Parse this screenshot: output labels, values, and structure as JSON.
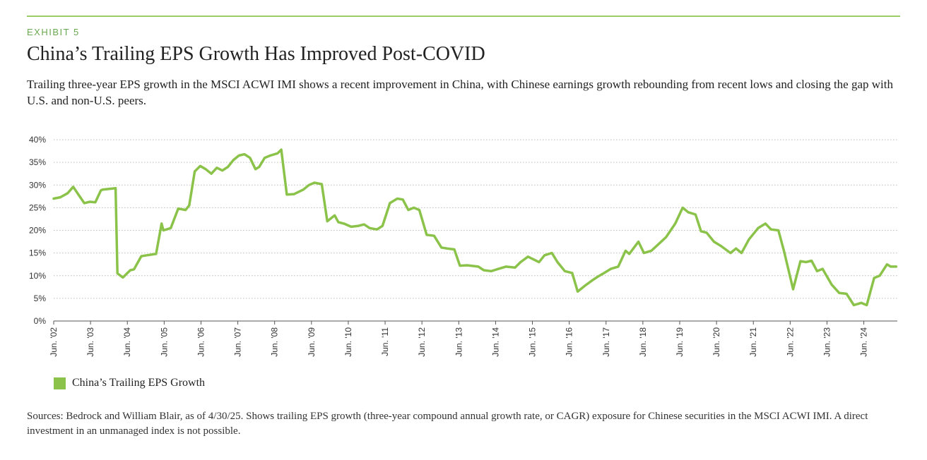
{
  "exhibit": "EXHIBIT 5",
  "title": "China’s Trailing EPS Growth Has Improved Post-COVID",
  "subtitle": "Trailing three-year EPS growth in the MSCI ACWI IMI shows a recent improvement in China, with Chinese earnings growth rebounding from recent lows and closing the gap with U.S. and non-U.S. peers.",
  "sources": "Sources: Bedrock and William Blair, as of 4/30/25. Shows trailing EPS growth (three-year compound annual growth rate, or CAGR) exposure for Chinese securities in the MSCI ACWI IMI. A direct investment in an unmanaged index is not possible.",
  "colors": {
    "accent": "#6aa84f",
    "line": "#8bc34a",
    "rule": "#9ccc65",
    "grid": "#bdbdbd"
  },
  "chart_data": {
    "type": "line",
    "title": "China’s Trailing EPS Growth Has Improved Post-COVID",
    "xlabel": "",
    "ylabel": "",
    "xlim": [
      2002.42,
      2025.33
    ],
    "ylim": [
      0,
      40
    ],
    "grid": true,
    "legend_position": "bottom-left",
    "y_ticks": [
      "0%",
      "5%",
      "10%",
      "15%",
      "20%",
      "25%",
      "30%",
      "35%",
      "40%"
    ],
    "x_ticks": [
      {
        "x": 2002.42,
        "label": "Jun. '02"
      },
      {
        "x": 2003.42,
        "label": "Jun. '03"
      },
      {
        "x": 2004.42,
        "label": "Jun. '04"
      },
      {
        "x": 2005.42,
        "label": "Jun. '05"
      },
      {
        "x": 2006.42,
        "label": "Jun. '06"
      },
      {
        "x": 2007.42,
        "label": "Jun. '07"
      },
      {
        "x": 2008.42,
        "label": "Jun. '08"
      },
      {
        "x": 2009.42,
        "label": "Jun. '09"
      },
      {
        "x": 2010.42,
        "label": "Jun. '10"
      },
      {
        "x": 2011.42,
        "label": "Jun. '11"
      },
      {
        "x": 2012.42,
        "label": "Jun. '12"
      },
      {
        "x": 2013.42,
        "label": "Jun. '13"
      },
      {
        "x": 2014.42,
        "label": "Jun. '14"
      },
      {
        "x": 2015.42,
        "label": "Jun. '15"
      },
      {
        "x": 2016.42,
        "label": "Jun. '16"
      },
      {
        "x": 2017.42,
        "label": "Jun. '17"
      },
      {
        "x": 2018.42,
        "label": "Jun. '18"
      },
      {
        "x": 2019.42,
        "label": "Jun. '19"
      },
      {
        "x": 2020.42,
        "label": "Jun. '20"
      },
      {
        "x": 2021.42,
        "label": "Jun. '21"
      },
      {
        "x": 2022.42,
        "label": "Jun. '22"
      },
      {
        "x": 2023.42,
        "label": "Jun. '23"
      },
      {
        "x": 2024.42,
        "label": "Jun. '24"
      }
    ],
    "series": [
      {
        "name": "China’s Trailing EPS Growth",
        "color": "#8bc34a",
        "x": [
          2002.42,
          2002.6,
          2002.8,
          2002.95,
          2003.1,
          2003.25,
          2003.4,
          2003.55,
          2003.7,
          2003.75,
          2004.1,
          2004.15,
          2004.3,
          2004.5,
          2004.6,
          2004.8,
          2004.95,
          2005.2,
          2005.35,
          2005.4,
          2005.6,
          2005.8,
          2006.0,
          2006.1,
          2006.25,
          2006.4,
          2006.55,
          2006.7,
          2006.85,
          2007.0,
          2007.15,
          2007.3,
          2007.45,
          2007.6,
          2007.75,
          2007.9,
          2008.0,
          2008.15,
          2008.3,
          2008.5,
          2008.6,
          2008.75,
          2008.95,
          2009.2,
          2009.35,
          2009.5,
          2009.7,
          2009.85,
          2010.05,
          2010.15,
          2010.3,
          2010.5,
          2010.7,
          2010.85,
          2011.0,
          2011.2,
          2011.35,
          2011.55,
          2011.75,
          2011.9,
          2012.05,
          2012.2,
          2012.35,
          2012.55,
          2012.75,
          2012.95,
          2013.1,
          2013.3,
          2013.45,
          2013.65,
          2013.95,
          2014.1,
          2014.3,
          2014.5,
          2014.7,
          2014.95,
          2015.1,
          2015.3,
          2015.6,
          2015.75,
          2015.95,
          2016.1,
          2016.3,
          2016.5,
          2016.65,
          2016.85,
          2017.05,
          2017.2,
          2017.35,
          2017.55,
          2017.75,
          2017.95,
          2018.05,
          2018.3,
          2018.45,
          2018.65,
          2018.85,
          2019.05,
          2019.3,
          2019.5,
          2019.65,
          2019.85,
          2020.0,
          2020.15,
          2020.35,
          2020.55,
          2020.8,
          2020.95,
          2021.1,
          2021.3,
          2021.55,
          2021.75,
          2021.9,
          2022.1,
          2022.25,
          2022.5,
          2022.7,
          2022.85,
          2023.0,
          2023.15,
          2023.3,
          2023.55,
          2023.75,
          2023.95,
          2024.15,
          2024.35,
          2024.5,
          2024.7,
          2024.85,
          2025.05,
          2025.15,
          2025.3
        ],
        "values": [
          27,
          27.3,
          28.2,
          29.6,
          27.8,
          26.0,
          26.3,
          26.2,
          28.8,
          29.0,
          29.3,
          10.5,
          9.6,
          11.2,
          11.4,
          14.3,
          14.5,
          14.8,
          21.5,
          20.0,
          20.5,
          24.8,
          24.5,
          25.5,
          33.0,
          34.2,
          33.5,
          32.5,
          33.8,
          33.2,
          34.0,
          35.5,
          36.5,
          36.8,
          36.0,
          33.5,
          34.0,
          36.0,
          36.5,
          37.0,
          37.8,
          27.9,
          28.0,
          29.0,
          30.0,
          30.5,
          30.2,
          22.0,
          23.3,
          21.8,
          21.5,
          20.8,
          21.0,
          21.3,
          20.5,
          20.2,
          21.0,
          26.0,
          27.0,
          26.8,
          24.5,
          25.0,
          24.5,
          19.0,
          18.8,
          16.2,
          16.0,
          15.8,
          12.2,
          12.3,
          12.0,
          11.2,
          11.0,
          11.5,
          12.0,
          11.8,
          13.0,
          14.2,
          13.0,
          14.5,
          15.0,
          13.0,
          11.0,
          10.6,
          6.5,
          7.8,
          9.0,
          9.8,
          10.5,
          11.5,
          12.0,
          15.5,
          14.8,
          17.5,
          15.0,
          15.5,
          17.0,
          18.5,
          21.5,
          25.0,
          24.0,
          23.5,
          19.8,
          19.5,
          17.5,
          16.5,
          15.0,
          16.0,
          15.0,
          18.0,
          20.5,
          21.5,
          20.2,
          20.0,
          15.5,
          7.0,
          13.2,
          13.0,
          13.3,
          11.0,
          11.5,
          8.0,
          6.2,
          6.0,
          3.5,
          4.0,
          3.5,
          9.5,
          10.0,
          12.5,
          12.0,
          12.0
        ]
      }
    ]
  }
}
